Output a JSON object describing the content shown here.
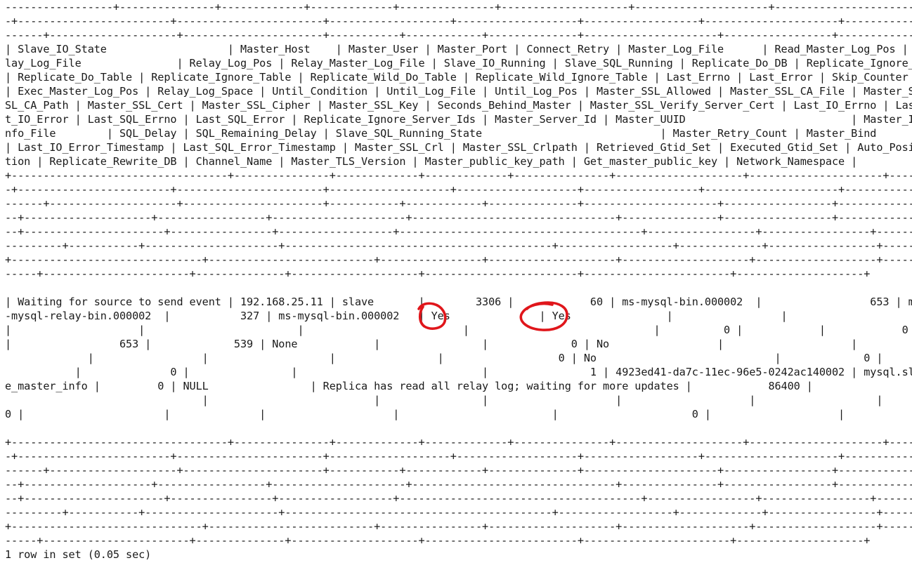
{
  "terminal": {
    "lines": [
      "-----------------+---------------+-------------+-------------+---------------+--------------------+---------------------+--------------------------+-----",
      "-+------------------------+-----------------------+-------------------+-------------------+------------------+---------------------+----------------------+",
      "------+--------------------+----------------------+-----------+------------+--------------+---------------------+-----------------+-------------------+-----",
      "| Slave_IO_State                   | Master_Host    | Master_User | Master_Port | Connect_Retry | Master_Log_File      | Read_Master_Log_Pos | Re",
      "lay_Log_File               | Relay_Log_Pos | Relay_Master_Log_File | Slave_IO_Running | Slave_SQL_Running | Replicate_Do_DB | Replicate_Ignore_DB",
      "| Replicate_Do_Table | Replicate_Ignore_Table | Replicate_Wild_Do_Table | Replicate_Wild_Ignore_Table | Last_Errno | Last_Error | Skip_Counter",
      "| Exec_Master_Log_Pos | Relay_Log_Space | Until_Condition | Until_Log_File | Until_Log_Pos | Master_SSL_Allowed | Master_SSL_CA_File | Master_S",
      "SL_CA_Path | Master_SSL_Cert | Master_SSL_Cipher | Master_SSL_Key | Seconds_Behind_Master | Master_SSL_Verify_Server_Cert | Last_IO_Errno | Las",
      "t_IO_Error | Last_SQL_Errno | Last_SQL_Error | Replicate_Ignore_Server_Ids | Master_Server_Id | Master_UUID                          | Master_I",
      "nfo_File        | SQL_Delay | SQL_Remaining_Delay | Slave_SQL_Running_State                            | Master_Retry_Count | Master_Bind",
      "| Last_IO_Error_Timestamp | Last_SQL_Error_Timestamp | Master_SSL_Crl | Master_SSL_Crlpath | Retrieved_Gtid_Set | Executed_Gtid_Set | Auto_Posi",
      "tion | Replicate_Rewrite_DB | Channel_Name | Master_TLS_Version | Master_public_key_path | Get_master_public_key | Network_Namespace |",
      "+----------------------------------+---------------+-------------+-------------+---------------+--------------------+---------------------+--------------------------+-----",
      "-+------------------------+-----------------------+-------------------+-------------------+------------------+---------------------+----------------------+",
      "------+--------------------+----------------------+-----------+------------+--------------+---------------------+-----------------+-------------------+-----",
      "--+--------------------+-----------------+---------------------+--------------------------------+---------------+-----------------+-----------------+---------",
      "--+----------------------+----------------+------------------+--------------------------------------+-----------------+-----------------+------+------------",
      "---------+-----------+---------------------+------------------------------------------+------------------+-------------+-----------------+------------",
      "+------------------------------+--------------------------+----------------+--------------------+--------------------+-------------------+-----------+",
      "-----+-----------------------+--------------+--------------------+------------------------+-----------------------+--------------------+",
      "| Waiting for source to send event | 192.168.25.11 | slave       |        3306 |            60 | ms-mysql-bin.000002  |                 653 | ms",
      "-mysql-relay-bin.000002  |           327 | ms-mysql-bin.000002   | Yes              | Yes               |                 |",
      "|                    |                        |                         |                             |          0 |            |            0",
      "|                 653 |             539 | None            |                |             0 | No                 |                    |",
      "             |                 |                   |                |                  0 | No                            |             0 |",
      "           |              0 |                |                             |                1 | 4923ed41-da7c-11ec-96e5-0242ac140002 | mysql.slav",
      "e_master_info |         0 | NULL                | Replica has read all relay log; waiting for more updates |            86400 |",
      "                               |                          |                |                    |                    |                   |",
      "0 |                      |              |                    |                        |                     0 |                    |",
      "+----------------------------------+---------------+-------------+-------------+---------------+--------------------+---------------------+--------------------------+-----",
      "-+------------------------+-----------------------+-------------------+-------------------+------------------+---------------------+----------------------+",
      "------+--------------------+----------------------+-----------+------------+--------------+---------------------+-----------------+-------------------+-----",
      "--+--------------------+-----------------+---------------------+--------------------------------+---------------+-----------------+-----------------+---------",
      "--+----------------------+----------------+------------------+--------------------------------------+-----------------+-----------------+------+------------",
      "---------+-----------+---------------------+------------------------------------------+------------------+-------------+-----------------+------------",
      "+------------------------------+--------------------------+----------------+--------------------+--------------------+-------------------+-----------+",
      "-----+-----------------------+--------------+--------------------+------------------------+-----------------------+--------------------+",
      "",
      "1 row in set (0.05 sec)"
    ]
  },
  "annotation": {
    "color": "#e0161b",
    "marks": [
      {
        "label": "Slave_IO_Running",
        "value": "Yes"
      },
      {
        "label": "Slave_SQL_Running",
        "value": "Yes"
      }
    ]
  }
}
